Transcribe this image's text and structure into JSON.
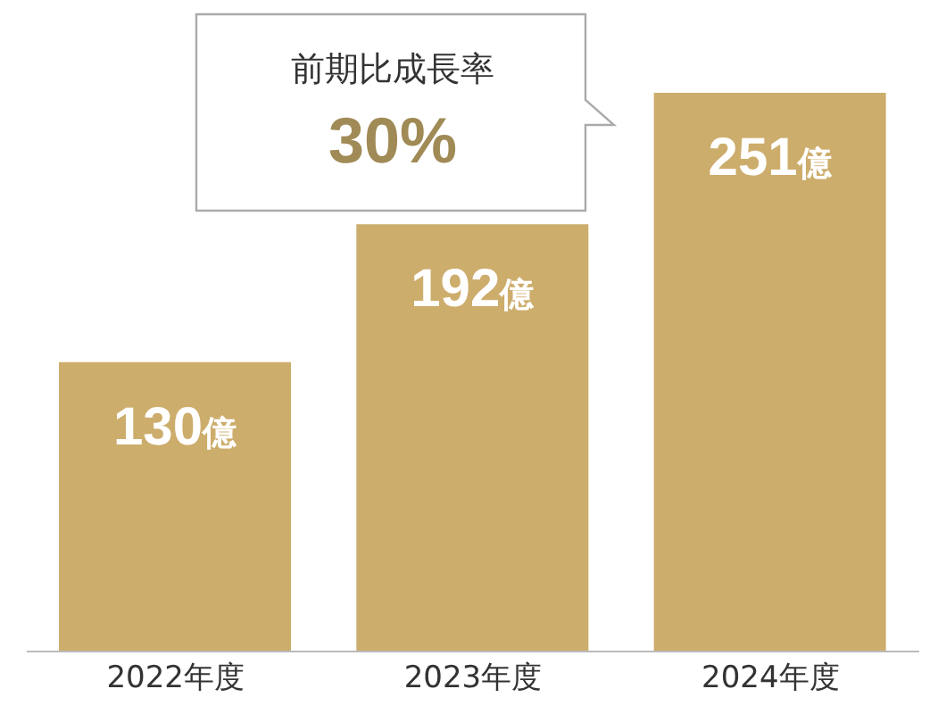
{
  "chart_data": {
    "type": "bar",
    "categories": [
      "2022年度",
      "2023年度",
      "2024年度"
    ],
    "values": [
      130,
      192,
      251
    ],
    "value_labels": [
      "130億",
      "192億",
      "251億"
    ],
    "color": "#cdad6c",
    "annotations": [
      "前期比成長率",
      "30%"
    ]
  }
}
